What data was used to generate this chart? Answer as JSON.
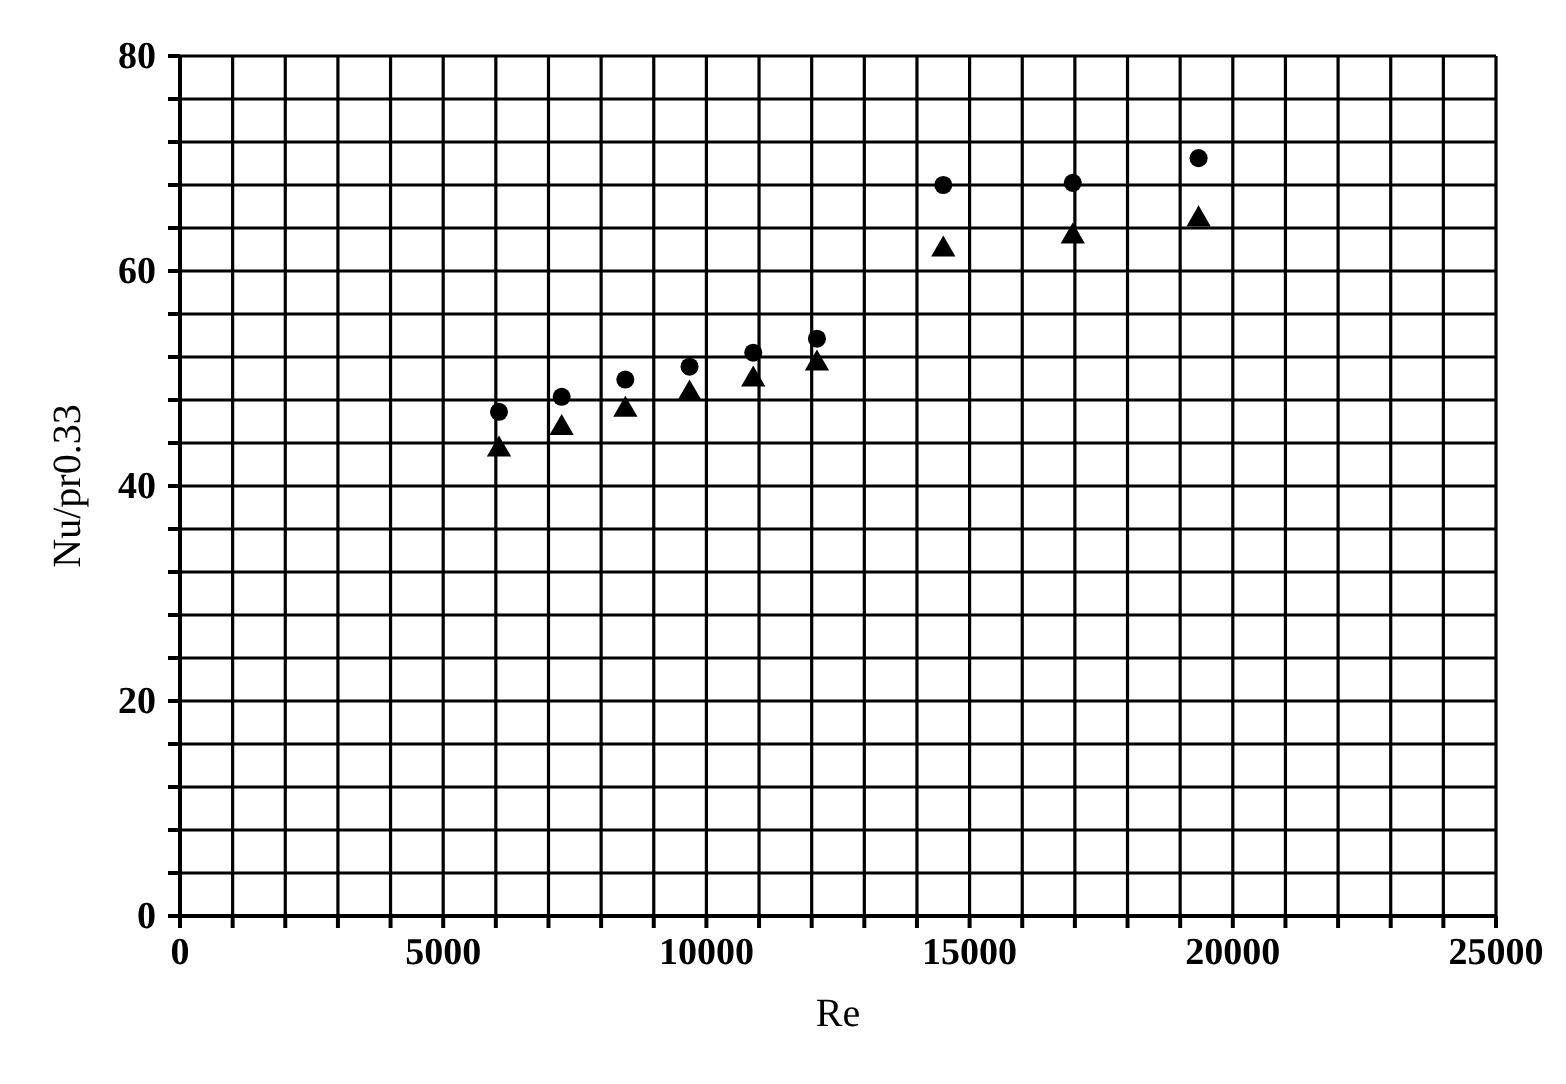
{
  "chart_data": {
    "type": "scatter",
    "xlabel": "Re",
    "ylabel": "Nu/pr0.33",
    "xlim": [
      0,
      25000
    ],
    "xticks": [
      0,
      {
        "value": 1000,
        "label": null
      },
      {
        "value": 2000,
        "label": null
      },
      {
        "value": 3000,
        "label": null
      },
      {
        "value": 4000,
        "label": null
      },
      5000,
      {
        "value": 6000,
        "label": null
      },
      {
        "value": 7000,
        "label": null
      },
      {
        "value": 8000,
        "label": null
      },
      {
        "value": 9000,
        "label": null
      },
      10000,
      {
        "value": 11000,
        "label": null
      },
      {
        "value": 12000,
        "label": null
      },
      {
        "value": 13000,
        "label": null
      },
      {
        "value": 14000,
        "label": null
      },
      15000,
      {
        "value": 16000,
        "label": null
      },
      {
        "value": 17000,
        "label": null
      },
      {
        "value": 18000,
        "label": null
      },
      {
        "value": 19000,
        "label": null
      },
      20000,
      {
        "value": 21000,
        "label": null
      },
      {
        "value": 22000,
        "label": null
      },
      {
        "value": 23000,
        "label": null
      },
      {
        "value": 24000,
        "label": null
      },
      25000
    ],
    "ylim": [
      0,
      80
    ],
    "yticks": [
      0,
      {
        "value": 4,
        "label": null
      },
      {
        "value": 8,
        "label": null
      },
      {
        "value": 12,
        "label": null
      },
      {
        "value": 16,
        "label": null
      },
      20,
      {
        "value": 24,
        "label": null
      },
      {
        "value": 28,
        "label": null
      },
      {
        "value": 32,
        "label": null
      },
      {
        "value": 36,
        "label": null
      },
      40,
      {
        "value": 44,
        "label": null
      },
      {
        "value": 48,
        "label": null
      },
      {
        "value": 52,
        "label": null
      },
      {
        "value": 56,
        "label": null
      },
      60,
      {
        "value": 64,
        "label": null
      },
      {
        "value": 68,
        "label": null
      },
      {
        "value": 72,
        "label": null
      },
      {
        "value": 76,
        "label": null
      },
      80
    ],
    "grid": true,
    "legend": false,
    "x": [
      6060,
      7250,
      8460,
      9680,
      10890,
      12100,
      14500,
      16960,
      19350
    ],
    "series": [
      {
        "color": "#000000",
        "marker": "circle",
        "values": [
          46.9,
          48.3,
          49.9,
          51.1,
          52.4,
          53.7,
          68.0,
          68.2,
          70.5
        ]
      },
      {
        "color": "#000000",
        "marker": "triangle",
        "values": [
          43.4,
          45.4,
          47.1,
          48.6,
          49.9,
          51.4,
          62.0,
          63.2,
          64.8
        ]
      }
    ]
  }
}
